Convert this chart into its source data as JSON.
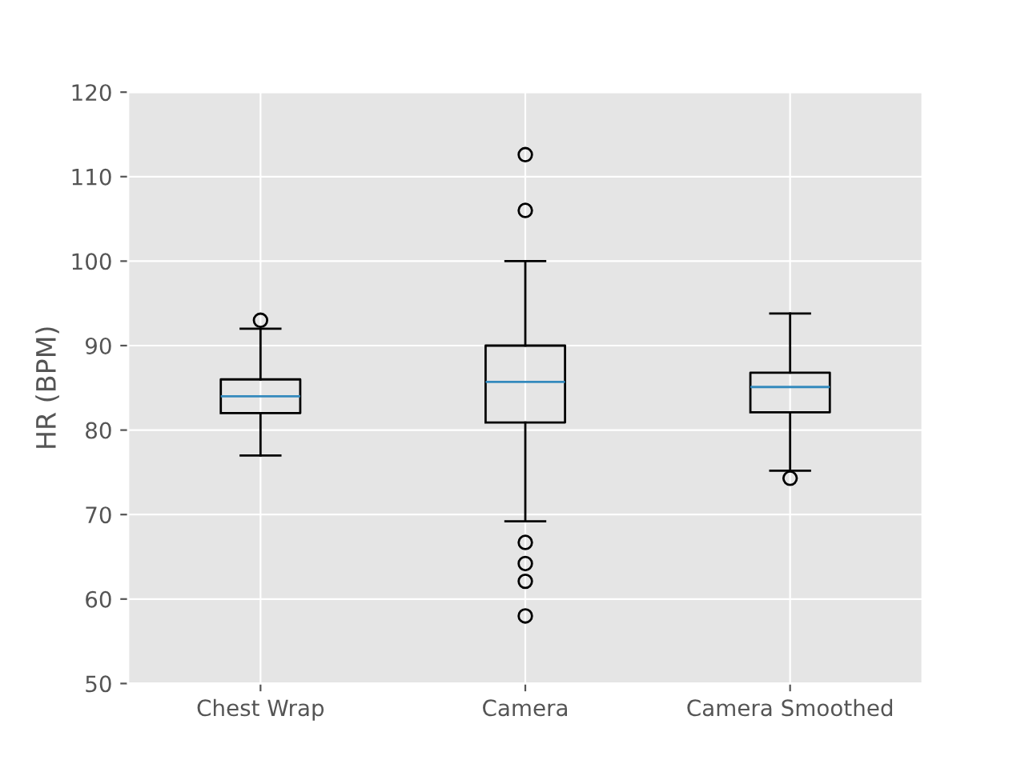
{
  "chart_data": {
    "type": "box",
    "ylabel": "HR (BPM)",
    "categories": [
      "Chest Wrap",
      "Camera",
      "Camera Smoothed"
    ],
    "boxes": [
      {
        "low": 77,
        "q1": 82,
        "median": 84,
        "q3": 86,
        "high": 92,
        "outliers": [
          93
        ]
      },
      {
        "low": 69.2,
        "q1": 80.9,
        "median": 85.7,
        "q3": 90,
        "high": 100,
        "outliers": [
          112.6,
          106,
          66.7,
          64.2,
          62.1,
          58
        ]
      },
      {
        "low": 75.2,
        "q1": 82.1,
        "median": 85.1,
        "q3": 86.8,
        "high": 93.8,
        "outliers": [
          74.3
        ]
      }
    ],
    "ylim": [
      50,
      120
    ],
    "yticks": [
      50,
      60,
      70,
      80,
      90,
      100,
      110,
      120
    ],
    "grid": true
  }
}
